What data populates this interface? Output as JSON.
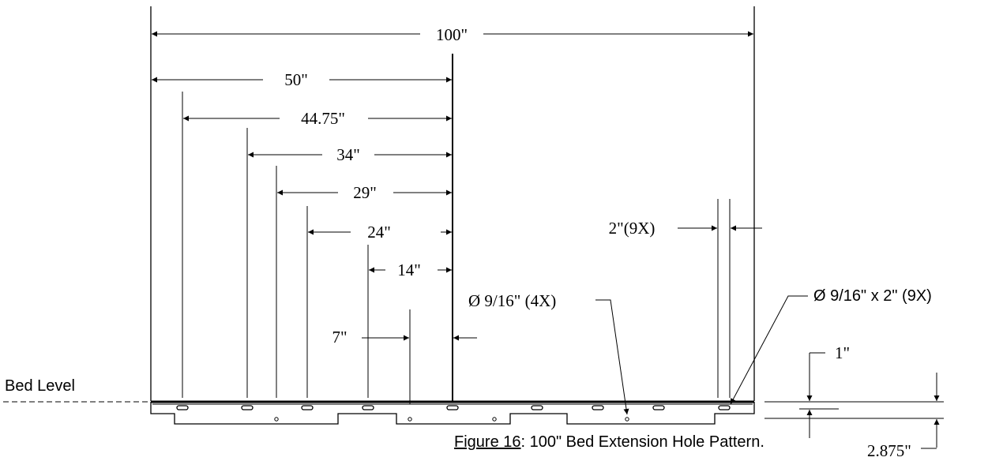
{
  "dimensions": {
    "d100": "100\"",
    "d50": "50\"",
    "d44_75": "44.75\"",
    "d34": "34\"",
    "d29": "29\"",
    "d24": "24\"",
    "d14": "14\"",
    "d7": "7\"",
    "d2_9x": "2\"(9X)",
    "d1": "1\"",
    "d2_875": "2.875\""
  },
  "callouts": {
    "hole_round": "Ø 9/16\" (4X)",
    "hole_slot": "Ø 9/16\" x 2\" (9X)"
  },
  "labels": {
    "bed_level": "Bed Level"
  },
  "caption": {
    "figure_label": "Figure 16",
    "text": ": 100\" Bed Extension Hole Pattern."
  }
}
